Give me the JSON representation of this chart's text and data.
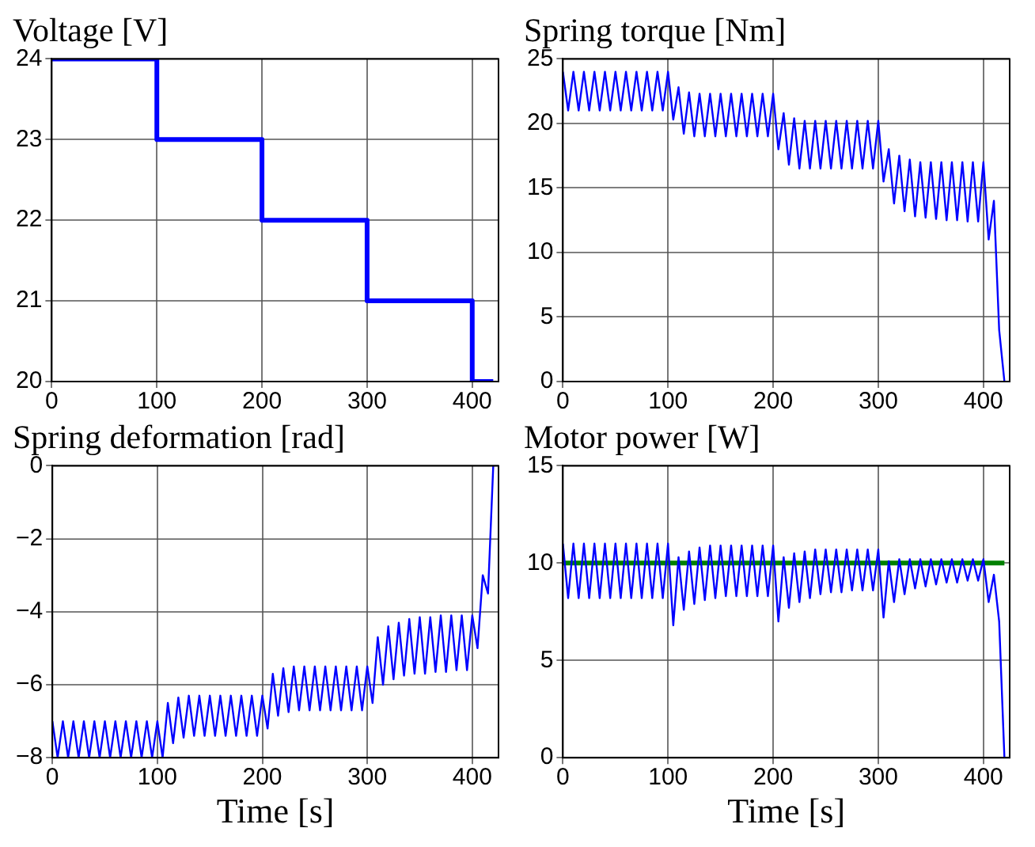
{
  "chart_data": [
    {
      "type": "step",
      "title": "Voltage [V]",
      "x": [
        0,
        100,
        200,
        300,
        400,
        420
      ],
      "xlim": [
        0,
        425
      ],
      "xticks": [
        0,
        100,
        200,
        300,
        400
      ],
      "ylim": [
        20,
        24
      ],
      "yticks": [
        20,
        21,
        22,
        23,
        24
      ],
      "grid": true,
      "series": [
        {
          "color": "#0000ff",
          "values": [
            24,
            23,
            22,
            21,
            20,
            20
          ]
        }
      ]
    },
    {
      "type": "line",
      "title": "Spring torque [Nm]",
      "x": [
        0,
        5,
        10,
        15,
        20,
        25,
        30,
        35,
        40,
        45,
        50,
        55,
        60,
        65,
        70,
        75,
        80,
        85,
        90,
        95,
        100,
        105,
        110,
        115,
        120,
        125,
        130,
        135,
        140,
        145,
        150,
        155,
        160,
        165,
        170,
        175,
        180,
        185,
        190,
        195,
        200,
        205,
        210,
        215,
        220,
        225,
        230,
        235,
        240,
        245,
        250,
        255,
        260,
        265,
        270,
        275,
        280,
        285,
        290,
        295,
        300,
        305,
        310,
        315,
        320,
        325,
        330,
        335,
        340,
        345,
        350,
        355,
        360,
        365,
        370,
        375,
        380,
        385,
        390,
        395,
        400,
        405,
        410,
        415,
        420
      ],
      "xlim": [
        0,
        425
      ],
      "xticks": [
        0,
        100,
        200,
        300,
        400
      ],
      "ylim": [
        0,
        25
      ],
      "yticks": [
        0,
        5,
        10,
        15,
        20,
        25
      ],
      "grid": true,
      "series": [
        {
          "color": "#0000ff",
          "values": [
            24,
            21,
            24,
            21,
            24,
            21,
            24,
            21,
            24,
            21,
            24,
            21,
            24,
            21,
            24,
            21,
            24,
            21,
            24,
            21,
            24,
            20.3,
            22.8,
            19.2,
            22.4,
            19,
            22.3,
            19,
            22.3,
            19,
            22.3,
            19,
            22.3,
            19,
            22.3,
            19,
            22.3,
            19,
            22.3,
            19,
            22.3,
            18,
            20.8,
            16.8,
            20.4,
            16.5,
            20.2,
            16.5,
            20.2,
            16.5,
            20.2,
            16.5,
            20.2,
            16.5,
            20.2,
            16.5,
            20.2,
            16.5,
            20.2,
            16.5,
            20.2,
            15.5,
            18,
            13.8,
            17.5,
            13.2,
            17.2,
            12.8,
            17,
            12.7,
            17,
            12.6,
            17,
            12.5,
            17,
            12.5,
            17,
            12.4,
            17,
            12.4,
            17,
            11,
            14,
            4,
            0
          ]
        }
      ]
    },
    {
      "type": "line",
      "title": "Spring deformation [rad]",
      "xlabel": "Time [s]",
      "x": [
        0,
        5,
        10,
        15,
        20,
        25,
        30,
        35,
        40,
        45,
        50,
        55,
        60,
        65,
        70,
        75,
        80,
        85,
        90,
        95,
        100,
        105,
        110,
        115,
        120,
        125,
        130,
        135,
        140,
        145,
        150,
        155,
        160,
        165,
        170,
        175,
        180,
        185,
        190,
        195,
        200,
        205,
        210,
        215,
        220,
        225,
        230,
        235,
        240,
        245,
        250,
        255,
        260,
        265,
        270,
        275,
        280,
        285,
        290,
        295,
        300,
        305,
        310,
        315,
        320,
        325,
        330,
        335,
        340,
        345,
        350,
        355,
        360,
        365,
        370,
        375,
        380,
        385,
        390,
        395,
        400,
        405,
        410,
        415,
        420
      ],
      "xlim": [
        0,
        425
      ],
      "xticks": [
        0,
        100,
        200,
        300,
        400
      ],
      "ylim": [
        -8,
        0
      ],
      "yticks": [
        {
          "value": -8,
          "label": "−8"
        },
        {
          "value": -6,
          "label": "−6"
        },
        {
          "value": -4,
          "label": "−4"
        },
        {
          "value": -2,
          "label": "−2"
        },
        0
      ],
      "grid": true,
      "series": [
        {
          "color": "#0000ff",
          "values": [
            -7,
            -8,
            -7,
            -8,
            -7,
            -8,
            -7,
            -8,
            -7,
            -8,
            -7,
            -8,
            -7,
            -8,
            -7,
            -8,
            -7,
            -8,
            -7,
            -8,
            -7,
            -8,
            -6.5,
            -7.6,
            -6.35,
            -7.45,
            -6.3,
            -7.4,
            -6.3,
            -7.4,
            -6.3,
            -7.4,
            -6.3,
            -7.4,
            -6.3,
            -7.4,
            -6.3,
            -7.4,
            -6.3,
            -7.4,
            -6.3,
            -7.2,
            -5.7,
            -6.85,
            -5.55,
            -6.75,
            -5.5,
            -6.7,
            -5.5,
            -6.7,
            -5.5,
            -6.7,
            -5.5,
            -6.7,
            -5.5,
            -6.7,
            -5.5,
            -6.7,
            -5.5,
            -6.7,
            -5.5,
            -6.5,
            -4.7,
            -6,
            -4.4,
            -5.85,
            -4.3,
            -5.75,
            -4.2,
            -5.7,
            -4.15,
            -5.7,
            -4.15,
            -5.65,
            -4.1,
            -5.65,
            -4.1,
            -5.6,
            -4.1,
            -5.6,
            -4.1,
            -5,
            -3,
            -3.5,
            0
          ]
        }
      ]
    },
    {
      "type": "line",
      "title": "Motor power [W]",
      "xlabel": "Time [s]",
      "x": [
        0,
        5,
        10,
        15,
        20,
        25,
        30,
        35,
        40,
        45,
        50,
        55,
        60,
        65,
        70,
        75,
        80,
        85,
        90,
        95,
        100,
        105,
        110,
        115,
        120,
        125,
        130,
        135,
        140,
        145,
        150,
        155,
        160,
        165,
        170,
        175,
        180,
        185,
        190,
        195,
        200,
        205,
        210,
        215,
        220,
        225,
        230,
        235,
        240,
        245,
        250,
        255,
        260,
        265,
        270,
        275,
        280,
        285,
        290,
        295,
        300,
        305,
        310,
        315,
        320,
        325,
        330,
        335,
        340,
        345,
        350,
        355,
        360,
        365,
        370,
        375,
        380,
        385,
        390,
        395,
        400,
        405,
        410,
        415,
        420
      ],
      "xlim": [
        0,
        425
      ],
      "xticks": [
        0,
        100,
        200,
        300,
        400
      ],
      "ylim": [
        0,
        15
      ],
      "yticks": [
        0,
        5,
        10,
        15
      ],
      "grid": true,
      "series": [
        {
          "color": "#0000ff",
          "values": [
            11,
            8.2,
            11,
            8.2,
            11,
            8.2,
            11,
            8.2,
            11,
            8.2,
            11,
            8.2,
            11,
            8.2,
            11,
            8.2,
            11,
            8.2,
            11,
            8.2,
            11,
            6.8,
            10.3,
            7.6,
            10.6,
            7.9,
            10.8,
            8.1,
            10.9,
            8.2,
            10.9,
            8.3,
            10.9,
            8.3,
            10.9,
            8.3,
            10.9,
            8.3,
            10.9,
            8.3,
            10.9,
            7,
            10.3,
            7.7,
            10.5,
            8,
            10.6,
            8.2,
            10.7,
            8.4,
            10.7,
            8.5,
            10.7,
            8.5,
            10.7,
            8.6,
            10.7,
            8.6,
            10.7,
            8.6,
            10.7,
            7.2,
            10.1,
            8,
            10.2,
            8.4,
            10.2,
            8.7,
            10.2,
            8.8,
            10.2,
            8.9,
            10.2,
            9,
            10.2,
            9,
            10.2,
            9.1,
            10.2,
            9.1,
            10.2,
            8,
            9.4,
            7,
            0
          ]
        },
        {
          "type": "line",
          "color": "#008000",
          "x": [
            0,
            420
          ],
          "values": [
            10,
            10
          ]
        }
      ]
    }
  ]
}
